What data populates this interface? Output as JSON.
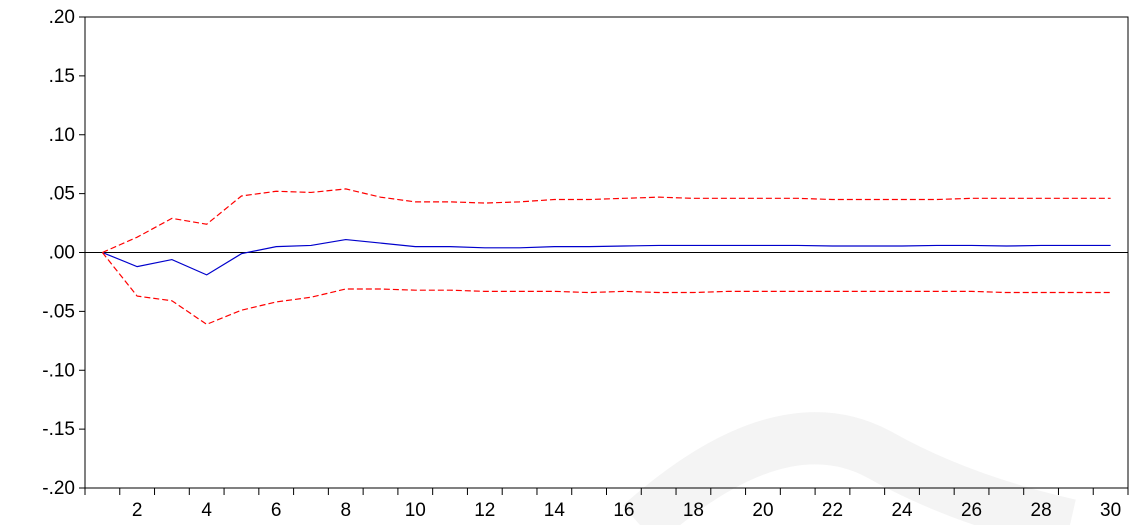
{
  "chart_data": {
    "type": "line",
    "title": "",
    "xlabel": "",
    "ylabel": "",
    "x": [
      1,
      2,
      3,
      4,
      5,
      6,
      7,
      8,
      9,
      10,
      11,
      12,
      13,
      14,
      15,
      16,
      17,
      18,
      19,
      20,
      21,
      22,
      23,
      24,
      25,
      26,
      27,
      28,
      29,
      30
    ],
    "x_tick_labels": [
      "2",
      "4",
      "6",
      "8",
      "10",
      "12",
      "14",
      "16",
      "18",
      "20",
      "22",
      "24",
      "26",
      "28",
      "30"
    ],
    "xlim": [
      0.5,
      30.5
    ],
    "ylim": [
      -0.2,
      0.2
    ],
    "y_tick_values": [
      -0.2,
      -0.15,
      -0.1,
      -0.05,
      0.0,
      0.05,
      0.1,
      0.15,
      0.2
    ],
    "y_tick_labels": [
      "-.20",
      "-.15",
      "-.10",
      "-.05",
      ".00",
      ".05",
      ".10",
      ".15",
      ".20"
    ],
    "zero_line": true,
    "grid": false,
    "series": [
      {
        "color": "#0000cc",
        "style": "solid",
        "values": [
          0.0,
          -0.012,
          -0.006,
          -0.019,
          -0.001,
          0.005,
          0.006,
          0.011,
          0.008,
          0.005,
          0.005,
          0.004,
          0.004,
          0.005,
          0.005,
          0.0055,
          0.006,
          0.006,
          0.006,
          0.006,
          0.006,
          0.0055,
          0.0055,
          0.0055,
          0.006,
          0.006,
          0.0055,
          0.006,
          0.006,
          0.006
        ]
      },
      {
        "color": "#ff0000",
        "style": "dashed",
        "values": [
          0.0,
          0.013,
          0.029,
          0.024,
          0.048,
          0.052,
          0.051,
          0.054,
          0.047,
          0.043,
          0.043,
          0.042,
          0.043,
          0.045,
          0.045,
          0.046,
          0.047,
          0.046,
          0.046,
          0.046,
          0.046,
          0.045,
          0.045,
          0.045,
          0.045,
          0.046,
          0.046,
          0.046,
          0.046,
          0.046
        ]
      },
      {
        "color": "#ff0000",
        "style": "dashed",
        "values": [
          0.0,
          -0.037,
          -0.041,
          -0.061,
          -0.049,
          -0.042,
          -0.038,
          -0.031,
          -0.031,
          -0.032,
          -0.032,
          -0.033,
          -0.033,
          -0.033,
          -0.034,
          -0.033,
          -0.034,
          -0.034,
          -0.033,
          -0.033,
          -0.033,
          -0.033,
          -0.033,
          -0.033,
          -0.033,
          -0.033,
          -0.034,
          -0.034,
          -0.034,
          -0.034
        ]
      }
    ]
  }
}
